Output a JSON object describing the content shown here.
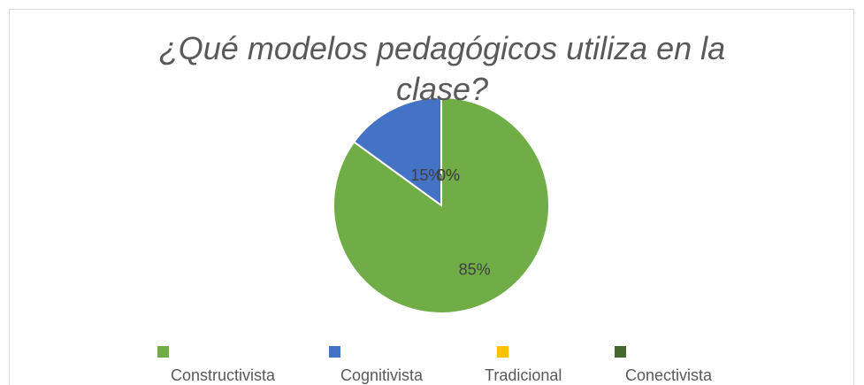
{
  "chart_data": {
    "type": "pie",
    "title": "¿Qué modelos pedagógicos utiliza en la clase?",
    "categories": [
      "Constructivista",
      "Cognitivista",
      "Tradicional",
      "Conectivista"
    ],
    "values": [
      85,
      15,
      0,
      0
    ],
    "value_labels": [
      "85%",
      "15%",
      "0%",
      "0%"
    ],
    "colors": [
      "#70ad47",
      "#4472c4",
      "#ffc000",
      "#43682b"
    ],
    "legend": "bottom"
  }
}
